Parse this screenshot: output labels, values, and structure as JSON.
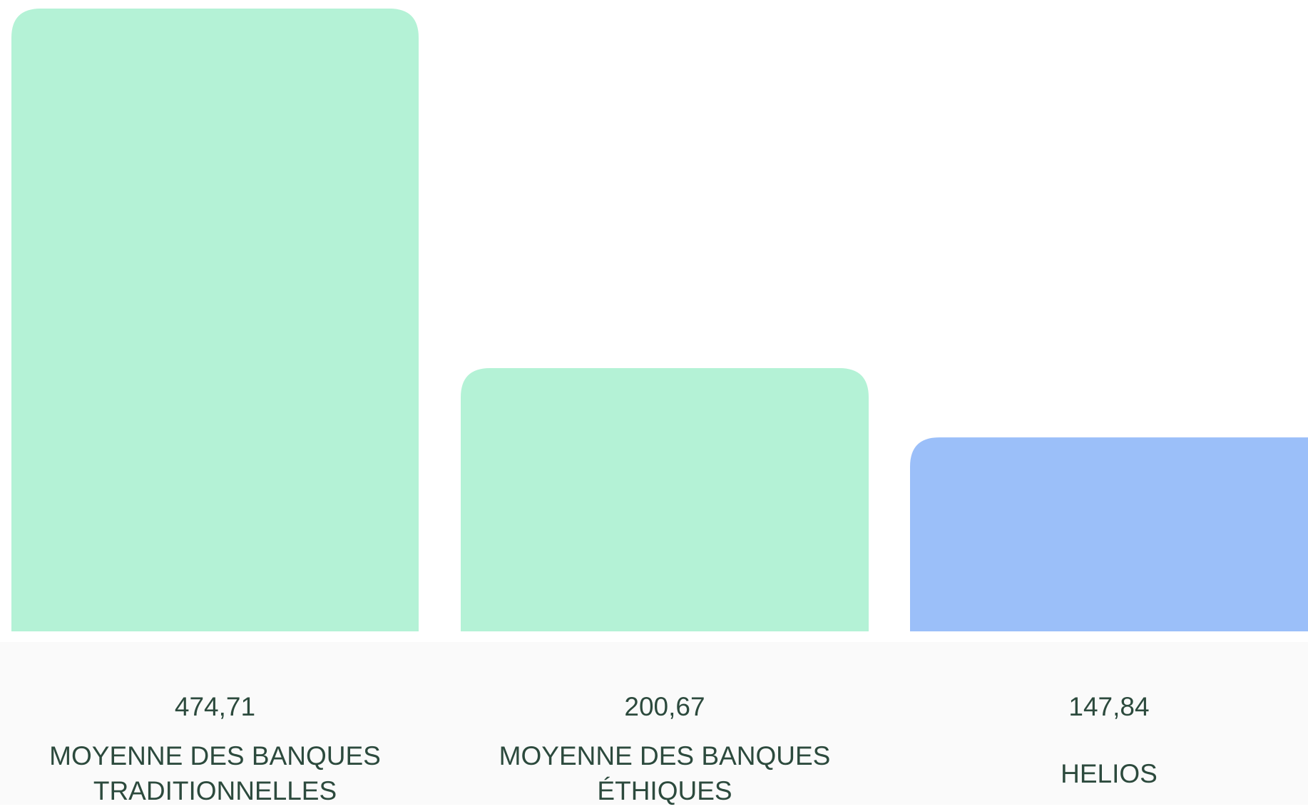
{
  "chart_data": {
    "type": "bar",
    "categories": [
      "MOYENNE DES BANQUES TRADITIONNELLES",
      "MOYENNE DES BANQUES ÉTHIQUES",
      "HELIOS"
    ],
    "values": [
      474.71,
      200.67,
      147.84
    ],
    "value_labels": [
      "474,71",
      "200,67",
      "147,84"
    ],
    "colors": [
      "#b4f2d6",
      "#b4f2d6",
      "#9bbff9"
    ]
  }
}
